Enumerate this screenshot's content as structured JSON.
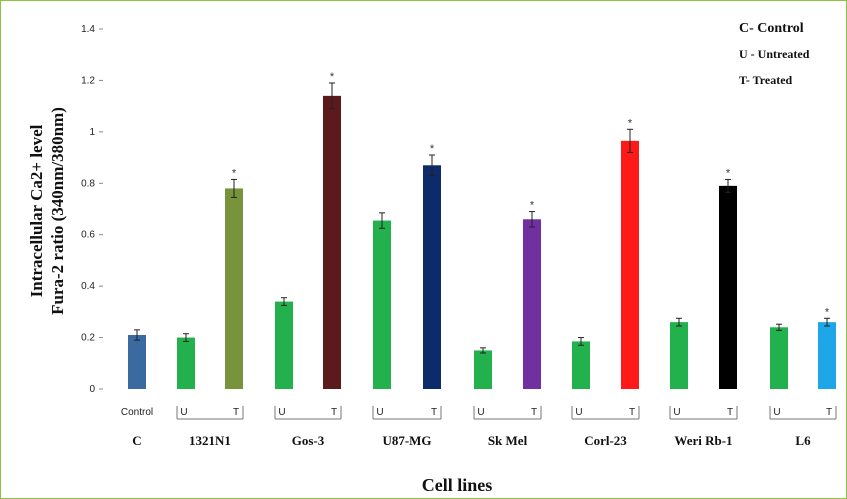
{
  "chart_data": {
    "type": "bar",
    "ylabel_line1": "Intracellular Ca2+ level",
    "ylabel_line2": "Fura-2 ratio (340nm/380nm)",
    "xlabel": "Cell lines",
    "ylim": [
      0,
      1.4
    ],
    "yticks": [
      "0",
      "0.2",
      "0.4",
      "0.6",
      "0.8",
      "1",
      "1.2",
      "1.4"
    ],
    "grid": false,
    "legend": {
      "position": "top-right",
      "entries": [
        {
          "key": "C",
          "text": "C- Control"
        },
        {
          "key": "U",
          "text": "U - Untreated"
        },
        {
          "key": "T",
          "text": "T- Treated"
        }
      ]
    },
    "groups": [
      {
        "name": "C",
        "bars": [
          {
            "label": "Control",
            "value": 0.21,
            "err": 0.02,
            "color": "#3a6aa0",
            "star": false
          }
        ]
      },
      {
        "name": "1321N1",
        "bars": [
          {
            "label": "U",
            "value": 0.2,
            "err": 0.015,
            "color": "#22b14c",
            "star": false
          },
          {
            "label": "T",
            "value": 0.78,
            "err": 0.035,
            "color": "#77933c",
            "star": true
          }
        ]
      },
      {
        "name": "Gos-3",
        "bars": [
          {
            "label": "U",
            "value": 0.34,
            "err": 0.015,
            "color": "#22b14c",
            "star": false
          },
          {
            "label": "T",
            "value": 1.14,
            "err": 0.05,
            "color": "#5c1a1d",
            "star": true
          }
        ]
      },
      {
        "name": "U87-MG",
        "bars": [
          {
            "label": "U",
            "value": 0.655,
            "err": 0.03,
            "color": "#22b14c",
            "star": false
          },
          {
            "label": "T",
            "value": 0.87,
            "err": 0.04,
            "color": "#0d2a6b",
            "star": true
          }
        ]
      },
      {
        "name": "Sk Mel",
        "bars": [
          {
            "label": "U",
            "value": 0.15,
            "err": 0.01,
            "color": "#22b14c",
            "star": false
          },
          {
            "label": "T",
            "value": 0.66,
            "err": 0.03,
            "color": "#7030a0",
            "star": true
          }
        ]
      },
      {
        "name": "Corl-23",
        "bars": [
          {
            "label": "U",
            "value": 0.185,
            "err": 0.015,
            "color": "#22b14c",
            "star": false
          },
          {
            "label": "T",
            "value": 0.965,
            "err": 0.045,
            "color": "#ff1a1a",
            "star": true
          }
        ]
      },
      {
        "name": "Weri Rb-1",
        "bars": [
          {
            "label": "U",
            "value": 0.26,
            "err": 0.015,
            "color": "#22b14c",
            "star": false
          },
          {
            "label": "T",
            "value": 0.79,
            "err": 0.025,
            "color": "#000000",
            "star": true
          }
        ]
      },
      {
        "name": "L6",
        "bars": [
          {
            "label": "U",
            "value": 0.24,
            "err": 0.012,
            "color": "#22b14c",
            "star": false
          },
          {
            "label": "T",
            "value": 0.26,
            "err": 0.015,
            "color": "#1ea7e8",
            "star": true
          }
        ]
      }
    ]
  }
}
